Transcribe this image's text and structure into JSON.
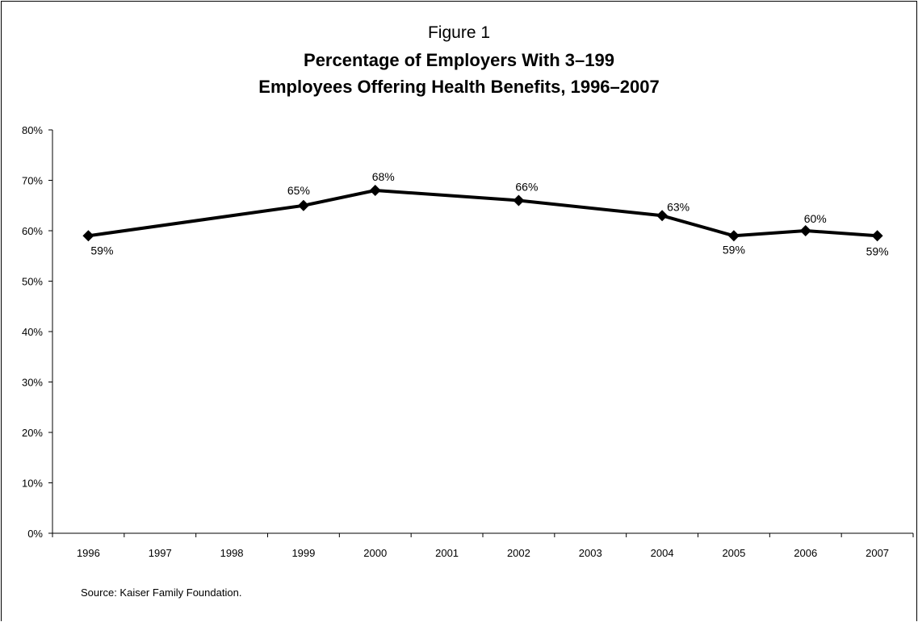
{
  "figure_label": "Figure 1",
  "title_line1": "Percentage of Employers With 3–199",
  "title_line2": "Employees Offering Health Benefits, 1996–2007",
  "source": "Source: Kaiser Family Foundation.",
  "chart_data": {
    "type": "line",
    "title": "Percentage of Employers With 3–199 Employees Offering Health Benefits, 1996–2007",
    "xlabel": "",
    "ylabel": "",
    "categories": [
      "1996",
      "1997",
      "1998",
      "1999",
      "2000",
      "2001",
      "2002",
      "2003",
      "2004",
      "2005",
      "2006",
      "2007"
    ],
    "y_ticks": [
      "0%",
      "10%",
      "20%",
      "30%",
      "40%",
      "50%",
      "60%",
      "70%",
      "80%"
    ],
    "ylim": [
      0,
      80
    ],
    "grid": false,
    "legend": "none",
    "series": [
      {
        "color": "#000000",
        "marker": "diamond",
        "points": [
          {
            "x": "1996",
            "y": 59,
            "label": "59%"
          },
          {
            "x": "1999",
            "y": 65,
            "label": "65%"
          },
          {
            "x": "2000",
            "y": 68,
            "label": "68%"
          },
          {
            "x": "2002",
            "y": 66,
            "label": "66%"
          },
          {
            "x": "2004",
            "y": 63,
            "label": "63%"
          },
          {
            "x": "2005",
            "y": 59,
            "label": "59%"
          },
          {
            "x": "2006",
            "y": 60,
            "label": "60%"
          },
          {
            "x": "2007",
            "y": 59,
            "label": "59%"
          }
        ]
      }
    ]
  }
}
